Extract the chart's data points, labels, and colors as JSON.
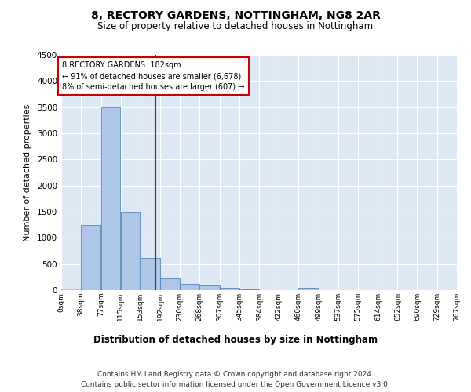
{
  "title1": "8, RECTORY GARDENS, NOTTINGHAM, NG8 2AR",
  "title2": "Size of property relative to detached houses in Nottingham",
  "xlabel": "Distribution of detached houses by size in Nottingham",
  "ylabel": "Number of detached properties",
  "footnote1": "Contains HM Land Registry data © Crown copyright and database right 2024.",
  "footnote2": "Contains public sector information licensed under the Open Government Licence v3.0.",
  "annotation_line1": "8 RECTORY GARDENS: 182sqm",
  "annotation_line2": "← 91% of detached houses are smaller (6,678)",
  "annotation_line3": "8% of semi-detached houses are larger (607) →",
  "property_size": 182,
  "bin_edges": [
    0,
    38,
    77,
    115,
    153,
    192,
    230,
    268,
    307,
    345,
    384,
    422,
    460,
    499,
    537,
    575,
    614,
    652,
    690,
    729,
    767
  ],
  "bar_heights": [
    30,
    1250,
    3500,
    1480,
    620,
    230,
    120,
    90,
    40,
    10,
    5,
    0,
    40,
    0,
    0,
    0,
    0,
    0,
    0,
    0
  ],
  "bar_color": "#aec6e8",
  "bar_edge_color": "#5588bb",
  "vline_color": "#cc0000",
  "box_edge_color": "#cc0000",
  "background_color": "#dde8f5",
  "grid_color": "#ffffff",
  "ylim": [
    0,
    4500
  ],
  "yticks": [
    0,
    500,
    1000,
    1500,
    2000,
    2500,
    3000,
    3500,
    4000,
    4500
  ]
}
